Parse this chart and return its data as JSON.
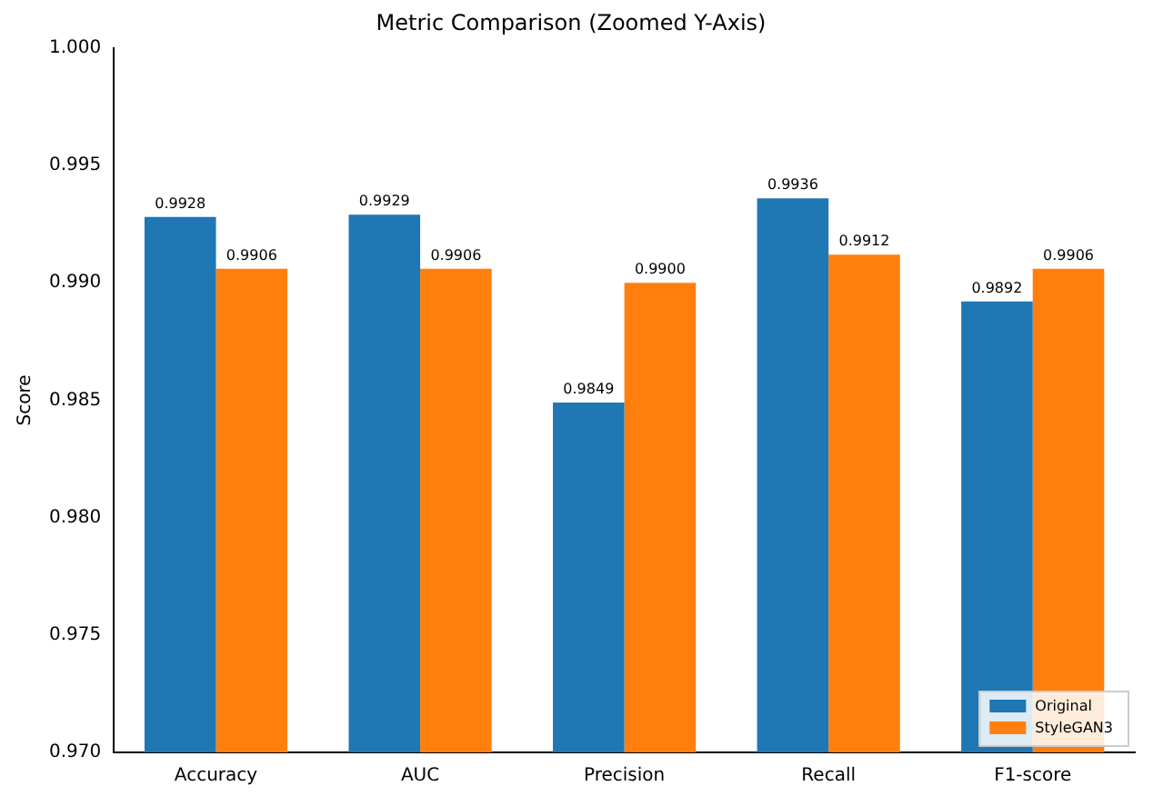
{
  "chart_data": {
    "type": "bar",
    "title": "Metric Comparison (Zoomed Y-Axis)",
    "ylabel": "Score",
    "categories": [
      "Accuracy",
      "AUC",
      "Precision",
      "Recall",
      "F1-score"
    ],
    "series": [
      {
        "name": "Original",
        "color": "#1f77b4",
        "values": [
          0.9928,
          0.9929,
          0.9849,
          0.9936,
          0.9892
        ],
        "value_labels": [
          "0.9928",
          "0.9929",
          "0.9849",
          "0.9936",
          "0.9892"
        ]
      },
      {
        "name": "StyleGAN3",
        "color": "#ff7f0e",
        "values": [
          0.9906,
          0.9906,
          0.99,
          0.9912,
          0.9906
        ],
        "value_labels": [
          "0.9906",
          "0.9906",
          "0.9900",
          "0.9912",
          "0.9906"
        ]
      }
    ],
    "ylim": [
      0.97,
      1.0
    ],
    "yticks": [
      {
        "value": 0.97,
        "label": "0.970"
      },
      {
        "value": 0.975,
        "label": "0.975"
      },
      {
        "value": 0.98,
        "label": "0.980"
      },
      {
        "value": 0.985,
        "label": "0.985"
      },
      {
        "value": 0.99,
        "label": "0.990"
      },
      {
        "value": 0.995,
        "label": "0.995"
      },
      {
        "value": 1.0,
        "label": "1.000"
      }
    ],
    "grid": false,
    "legend": "bottom right"
  }
}
